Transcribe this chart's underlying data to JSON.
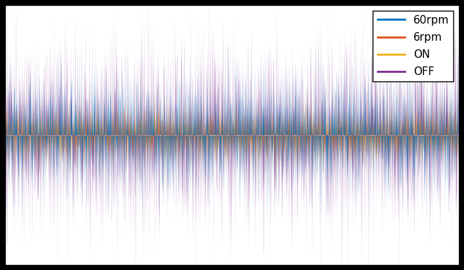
{
  "title": "",
  "xlabel": "",
  "ylabel": "",
  "xlim": [
    0,
    1
  ],
  "ylim": [
    -1.5,
    1.5
  ],
  "grid": true,
  "legend_labels": [
    "60rpm",
    "6rpm",
    "ON",
    "OFF"
  ],
  "colors": {
    "60rpm": "#0072bd",
    "6rpm": "#d95319",
    "ON": "#edb120",
    "OFF": "#7e2f8e"
  },
  "n_points": 5000,
  "noise_std_60rpm": 0.35,
  "noise_std_6rpm": 0.18,
  "noise_std_ON": 0.18,
  "noise_std_OFF": 0.55,
  "background_color": "#ffffff",
  "fig_facecolor": "#000000",
  "grid_color": "#b0b0b0",
  "grid_lw": 0.6,
  "linewidth": 0.5
}
